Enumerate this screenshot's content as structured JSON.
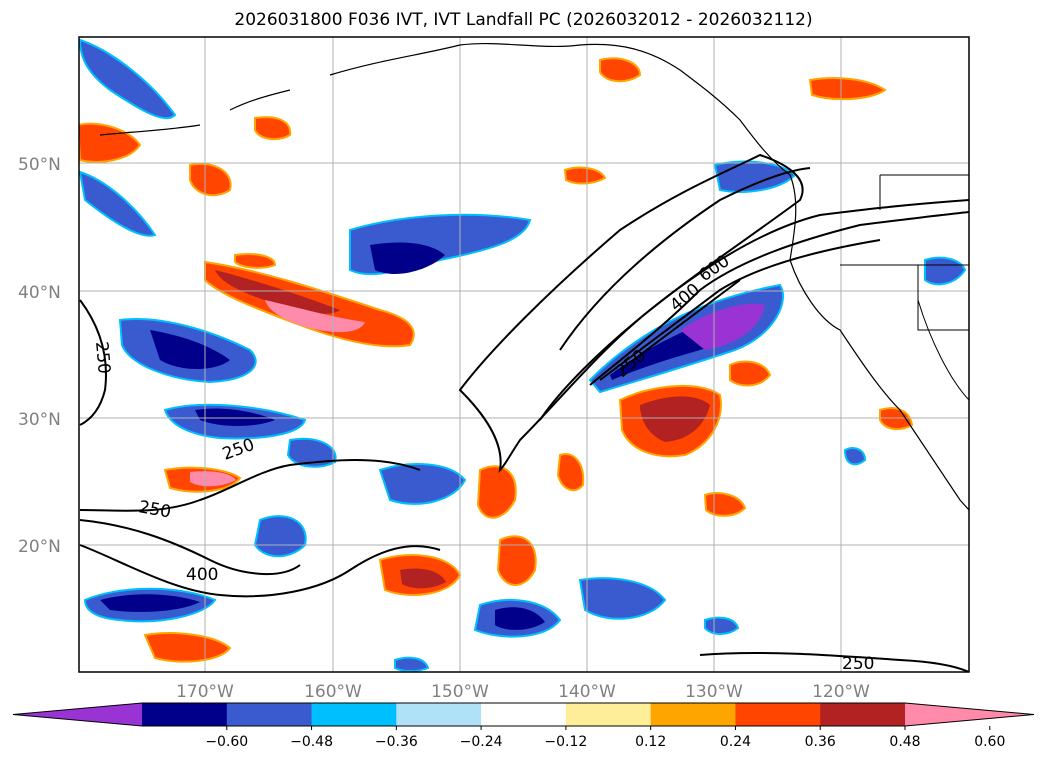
{
  "title": "2026031800 F036 IVT, IVT Landfall PC (2026032012 - 2026032112)",
  "axes": {
    "lat_ticks": [
      "50°N",
      "40°N",
      "30°N",
      "20°N"
    ],
    "lon_ticks": [
      "170°W",
      "160°W",
      "150°W",
      "140°W",
      "130°W",
      "120°W"
    ]
  },
  "contour_labels": [
    "250",
    "250",
    "250",
    "400",
    "400",
    "600",
    "250",
    "250"
  ],
  "colorbar": {
    "ticks": [
      "−0.60",
      "−0.48",
      "−0.36",
      "−0.24",
      "−0.12",
      "0.12",
      "0.24",
      "0.36",
      "0.48",
      "0.60"
    ],
    "colors": [
      "#9a33d4",
      "#00008b",
      "#3a5bd0",
      "#00bfff",
      "#b0e2f7",
      "#ffffff",
      "#ffee99",
      "#ffa500",
      "#ff4500",
      "#b22222",
      "#ff8aaa"
    ]
  },
  "chart_data": {
    "type": "map",
    "title": "2026031800 F036 IVT, IVT Landfall PC (2026032012 - 2026032112)",
    "lat_range": [
      10,
      60
    ],
    "lon_range": [
      -180,
      -110
    ],
    "contour_levels": [
      250,
      400,
      600
    ],
    "colorbar_levels": [
      -0.6,
      -0.48,
      -0.36,
      -0.24,
      -0.12,
      0.12,
      0.24,
      0.36,
      0.48,
      0.6
    ]
  }
}
